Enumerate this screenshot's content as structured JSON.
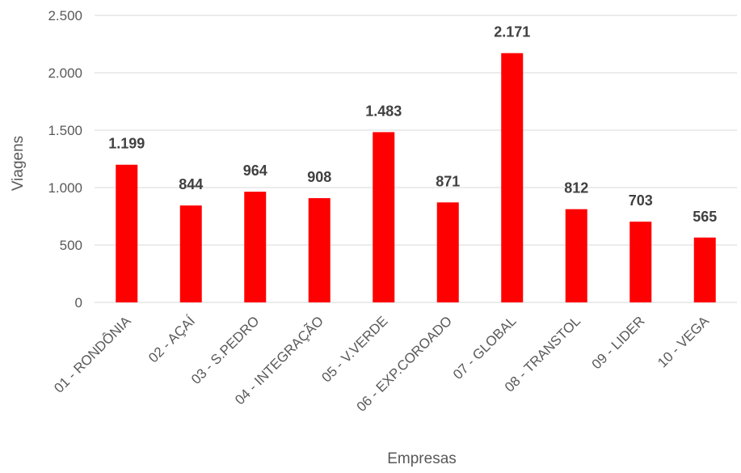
{
  "chart_data": {
    "type": "bar",
    "title": "",
    "xlabel": "Empresas",
    "ylabel": "Viagens",
    "categories": [
      "01 - RONDÔNIA",
      "02 - AÇAÍ",
      "03 - S.PEDRO",
      "04 - INTEGRAÇÃO",
      "05 - V.VERDE",
      "06 - EXP.COROADO",
      "07 - GLOBAL",
      "08 - TRANSTOL",
      "09 - LIDER",
      "10 - VEGA"
    ],
    "values": [
      1199,
      844,
      964,
      908,
      1483,
      871,
      2171,
      812,
      703,
      565
    ],
    "value_labels": [
      "1.199",
      "844",
      "964",
      "908",
      "1.483",
      "871",
      "2.171",
      "812",
      "703",
      "565"
    ],
    "ylim": [
      0,
      2500
    ],
    "yticks": [
      0,
      500,
      1000,
      1500,
      2000,
      2500
    ],
    "ytick_labels": [
      "0",
      "500",
      "1.000",
      "1.500",
      "2.000",
      "2.500"
    ],
    "grid": true,
    "legend": "none",
    "colors": {
      "bar": "#ff0000",
      "grid": "#d9d9d9",
      "text": "#595959",
      "datalabel": "#404040"
    }
  }
}
